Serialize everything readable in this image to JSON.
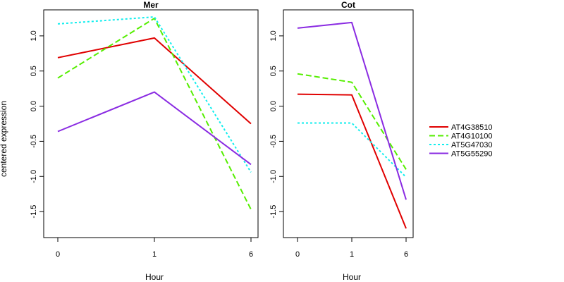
{
  "y_axis_label": "centered expression",
  "colors": {
    "AT4G38510": "#e00000",
    "AT4G10100": "#55ee00",
    "AT5G47030": "#11eeee",
    "AT5G55290": "#8a2be2"
  },
  "legend": {
    "placement": "right",
    "entries": [
      "AT4G38510",
      "AT4G10100",
      "AT5G47030",
      "AT5G55290"
    ]
  },
  "chart_data": [
    {
      "type": "line",
      "title": "Mer",
      "xlabel": "Hour",
      "ylabel": "centered expression",
      "categories": [
        "0",
        "1",
        "6"
      ],
      "ylim": [
        -1.87,
        1.37
      ],
      "yticks": [
        1.0,
        0.5,
        0.0,
        -0.5,
        -1.0,
        -1.5
      ],
      "ytick_labels": [
        "1.0",
        "0.5",
        "0.0",
        "-0.5",
        "-1.0",
        "-1.5"
      ],
      "grid": false,
      "series": [
        {
          "name": "AT4G38510",
          "values": [
            0.69,
            0.97,
            -0.25
          ],
          "dash": "solid"
        },
        {
          "name": "AT4G10100",
          "values": [
            0.4,
            1.25,
            -1.47
          ],
          "dash": "dashed"
        },
        {
          "name": "AT5G47030",
          "values": [
            1.17,
            1.27,
            -0.94
          ],
          "dash": "dotted"
        },
        {
          "name": "AT5G55290",
          "values": [
            -0.36,
            0.2,
            -0.83
          ],
          "dash": "solid"
        }
      ]
    },
    {
      "type": "line",
      "title": "Cot",
      "xlabel": "Hour",
      "ylabel": "",
      "categories": [
        "0",
        "1",
        "6"
      ],
      "ylim": [
        -1.87,
        1.37
      ],
      "yticks": [
        1.0,
        0.5,
        0.0,
        -0.5,
        -1.0,
        -1.5
      ],
      "ytick_labels": [
        "1.0",
        "0.5",
        "0.0",
        "-0.5",
        "-1.0",
        "-1.5"
      ],
      "grid": false,
      "series": [
        {
          "name": "AT4G38510",
          "values": [
            0.17,
            0.16,
            -1.74
          ],
          "dash": "solid"
        },
        {
          "name": "AT4G10100",
          "values": [
            0.46,
            0.34,
            -0.9
          ],
          "dash": "dashed"
        },
        {
          "name": "AT5G47030",
          "values": [
            -0.24,
            -0.24,
            -1.01
          ],
          "dash": "dotted"
        },
        {
          "name": "AT5G55290",
          "values": [
            1.11,
            1.19,
            -1.33
          ],
          "dash": "solid"
        }
      ]
    }
  ]
}
